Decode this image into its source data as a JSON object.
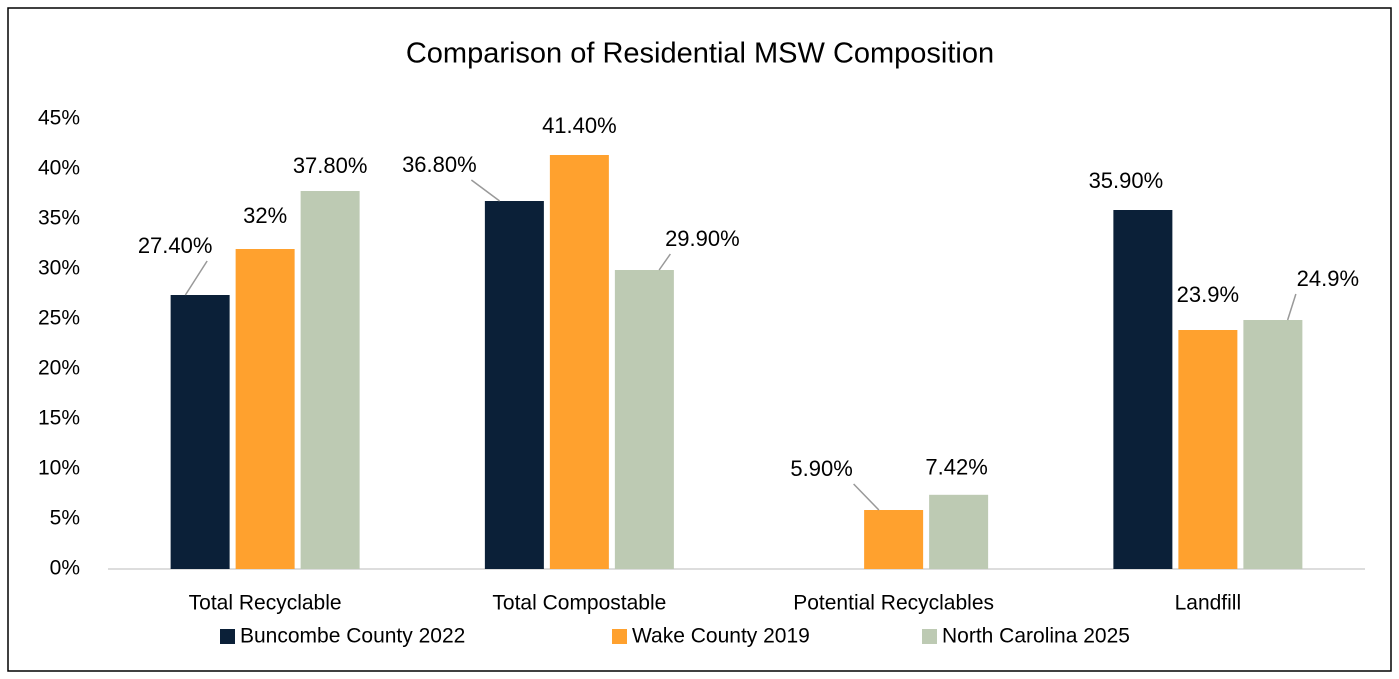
{
  "chart_data": {
    "type": "bar",
    "title": "Comparison of Residential MSW Composition",
    "categories": [
      "Total Recyclable",
      "Total Compostable",
      "Potential Recyclables",
      "Landfill"
    ],
    "series": [
      {
        "name": "Buncombe County 2022",
        "color": "#0b2038",
        "values": [
          27.4,
          36.8,
          null,
          35.9
        ],
        "value_labels": [
          "27.40%",
          "36.80%",
          null,
          "35.90%"
        ]
      },
      {
        "name": "Wake County 2019",
        "color": "#ffa12e",
        "values": [
          32,
          41.4,
          5.9,
          23.9
        ],
        "value_labels": [
          "32%",
          "41.40%",
          "5.90%",
          "23.9%"
        ]
      },
      {
        "name": "North Carolina 2025",
        "color": "#bdcab3",
        "values": [
          37.8,
          29.9,
          7.42,
          24.9
        ],
        "value_labels": [
          "37.80%",
          "29.90%",
          "7.42%",
          "24.9%"
        ]
      }
    ],
    "ylim": [
      0,
      45
    ],
    "yticks": [
      {
        "value": 0,
        "label": "0%"
      },
      {
        "value": 5,
        "label": "5%"
      },
      {
        "value": 10,
        "label": "10%"
      },
      {
        "value": 15,
        "label": "15%"
      },
      {
        "value": 20,
        "label": "20%"
      },
      {
        "value": 25,
        "label": "25%"
      },
      {
        "value": 30,
        "label": "30%"
      },
      {
        "value": 35,
        "label": "35%"
      },
      {
        "value": 40,
        "label": "40%"
      },
      {
        "value": 45,
        "label": "45%"
      }
    ],
    "grid": false,
    "legend": "bottom"
  }
}
